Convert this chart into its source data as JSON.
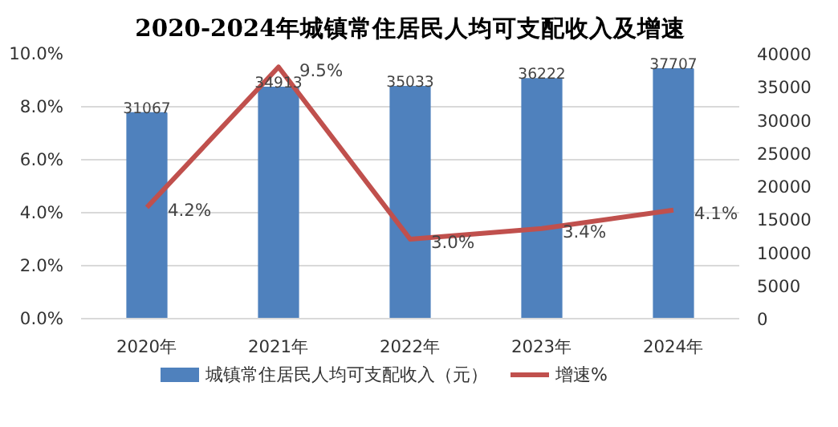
{
  "chart_data": {
    "type": "bar",
    "title": "2020-2024年城镇常住居民人均可支配收入及增速",
    "categories": [
      "2020年",
      "2021年",
      "2022年",
      "2023年",
      "2024年"
    ],
    "series": [
      {
        "name": "城镇常住居民人均可支配收入（元）",
        "type": "bar",
        "axis": "y2",
        "color": "#4f81bd",
        "values": [
          31067,
          34913,
          35033,
          36222,
          37707
        ]
      },
      {
        "name": "增速%",
        "type": "line",
        "color": "#c0504d",
        "values": [
          4.2,
          9.5,
          3.0,
          3.4,
          4.1
        ],
        "value_labels": [
          "4.2%",
          "9.5%",
          "3.0%",
          "3.4%",
          "4.1%"
        ]
      }
    ],
    "ylim": [
      0,
      10
    ],
    "yticks": [
      {
        "value": 0,
        "label": "0.0%"
      },
      {
        "value": 2,
        "label": "2.0%"
      },
      {
        "value": 4,
        "label": "4.0%"
      },
      {
        "value": 6,
        "label": "6.0%"
      },
      {
        "value": 8,
        "label": "8.0%"
      },
      {
        "value": 10,
        "label": "10.0%"
      }
    ],
    "y2lim": [
      0,
      40000
    ],
    "y2ticks": [
      0,
      5000,
      10000,
      15000,
      20000,
      25000,
      30000,
      35000,
      40000
    ],
    "data_labels": true,
    "grid": "y",
    "legend": "bottom",
    "marker": "none"
  }
}
